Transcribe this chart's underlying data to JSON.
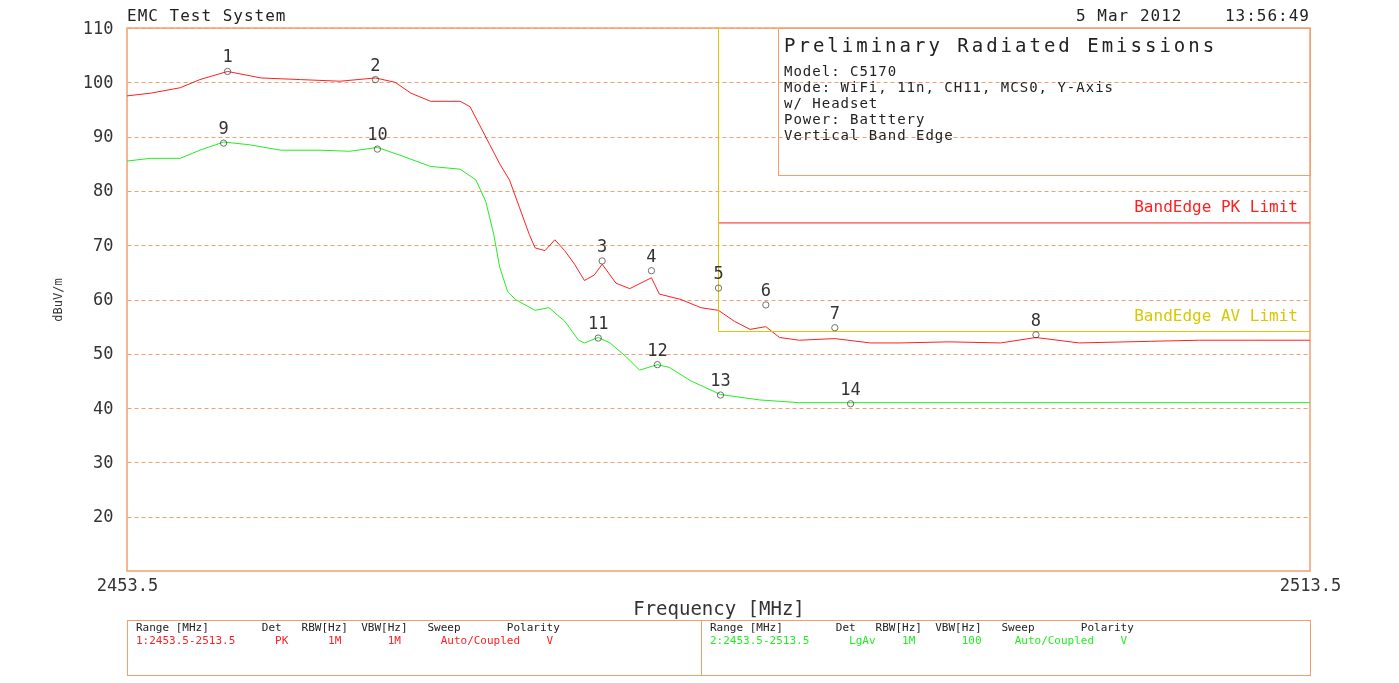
{
  "chart_data": {
    "type": "line",
    "title": "Preliminary Radiated Emissions",
    "xlabel": "Frequency [MHz]",
    "ylabel": "dBuV/m",
    "xlim": [
      2453.5,
      2513.5
    ],
    "xticks": [
      2453.5,
      2513.5
    ],
    "ylim": [
      10,
      110
    ],
    "yticks": [
      20,
      30,
      40,
      50,
      60,
      70,
      80,
      90,
      100,
      110
    ],
    "grid": "y",
    "marker": "none",
    "line_style": "solid",
    "series": [
      {
        "color": "#ff2020",
        "x": [
          2453.5,
          2454.7,
          2456.2,
          2457.2,
          2458.6,
          2460.3,
          2462.3,
          2464.3,
          2466.1,
          2467.1,
          2467.9,
          2468.9,
          2470.4,
          2470.9,
          2471.4,
          2471.9,
          2472.4,
          2472.9,
          2473.4,
          2473.9,
          2474.2,
          2474.7,
          2475.2,
          2475.7,
          2476.2,
          2476.7,
          2477.2,
          2477.6,
          2478.3,
          2479.0,
          2480.1,
          2480.5,
          2481.6,
          2482.6,
          2483.5,
          2484.3,
          2485.1,
          2485.9,
          2486.6,
          2487.6,
          2489.4,
          2491.2,
          2492.7,
          2495.2,
          2497.8,
          2499.6,
          2501.8,
          2505.4,
          2507.9,
          2510.5,
          2513.5
        ],
        "values": [
          97.5,
          98,
          99,
          100.5,
          102,
          100.8,
          100.5,
          100.2,
          100.8,
          100,
          98,
          96.5,
          96.5,
          95.5,
          92,
          88.5,
          85,
          82,
          77,
          72,
          69.5,
          69,
          71,
          69,
          66.5,
          63.5,
          64.5,
          66.5,
          63,
          62,
          64,
          61,
          60,
          58.5,
          58,
          56,
          54.5,
          55,
          53,
          52.5,
          52.8,
          52,
          52,
          52.2,
          52,
          53,
          52,
          52.3,
          52.5,
          52.5,
          52.5
        ]
      },
      {
        "color": "#22ee22",
        "x": [
          2453.5,
          2454.7,
          2456.2,
          2457.2,
          2458.4,
          2459.7,
          2461.3,
          2463.3,
          2464.8,
          2466.2,
          2467.4,
          2468.9,
          2470.4,
          2471.2,
          2471.7,
          2472.1,
          2472.4,
          2472.8,
          2473.2,
          2474.2,
          2474.9,
          2475.7,
          2476.4,
          2476.7,
          2477.4,
          2478.0,
          2478.8,
          2479.5,
          2480.4,
          2481.0,
          2482.1,
          2483.6,
          2485.6,
          2487.6,
          2490.2,
          2492.7,
          2497.8,
          2502.9,
          2507.9,
          2513.5
        ],
        "values": [
          85.5,
          86,
          86,
          87.5,
          89,
          88.5,
          87.5,
          87.5,
          87.3,
          88,
          86.5,
          84.5,
          84,
          82,
          78,
          72,
          66,
          61.5,
          60,
          58,
          58.5,
          56,
          52.5,
          52,
          53,
          52,
          49.5,
          47,
          48,
          47.5,
          45,
          42.5,
          41.5,
          41,
          41,
          41,
          41,
          41,
          41,
          41
        ]
      },
      {
        "name": "BandEdge PK Limit",
        "color": "#ff2020",
        "x": [
          2483.5,
          2513.5
        ],
        "values": [
          74.1,
          74.1
        ]
      },
      {
        "name": "BandEdge AV Limit",
        "color": "#d8c800",
        "x": [
          2483.5,
          2483.5,
          2513.5
        ],
        "values": [
          110,
          54.1,
          54.1
        ]
      },
      {
        "type": "scatter",
        "color": "#333333",
        "x": [
          2458.6,
          2466.1,
          2477.6,
          2480.1,
          2483.5,
          2485.9,
          2489.4,
          2499.6,
          2458.4,
          2466.2,
          2477.4,
          2480.4,
          2483.6,
          2490.2
        ],
        "values": [
          102,
          100.5,
          67.1,
          65.3,
          62.1,
          59,
          54.8,
          53.5,
          88.8,
          87.7,
          52.9,
          48,
          42.4,
          40.8
        ]
      }
    ],
    "annotations": [
      "EMC Test System",
      "5 Mar 2012    13:56:49",
      "Model: C5170",
      "Mode: WiFi, 11n, CH11, MCS0, Y-Axis",
      "w/ Headset",
      "Power: Batttery",
      "Vertical Band Edge",
      "Range [MHz]        Det   RBW[Hz]  VBW[Hz]   Sweep       Polarity",
      "1:2453.5-2513.5      PK      1M       1M      Auto/Coupled    V",
      "Range [MHz]        Det   RBW[Hz]  VBW[Hz]   Sweep       Polarity",
      "2:2453.5-2513.5      LgAv    1M       100     Auto/Coupled    V",
      {
        "text": "1",
        "x": 2458.6,
        "y": 102
      },
      {
        "text": "2",
        "x": 2466.1,
        "y": 100.5
      },
      {
        "text": "3",
        "x": 2477.6,
        "y": 67.1
      },
      {
        "text": "4",
        "x": 2480.1,
        "y": 65.3
      },
      {
        "text": "5",
        "x": 2483.5,
        "y": 62.1
      },
      {
        "text": "6",
        "x": 2485.9,
        "y": 59
      },
      {
        "text": "7",
        "x": 2489.4,
        "y": 54.8
      },
      {
        "text": "8",
        "x": 2499.6,
        "y": 53.5
      },
      {
        "text": "9",
        "x": 2458.4,
        "y": 88.8
      },
      {
        "text": "10",
        "x": 2466.2,
        "y": 87.7
      },
      {
        "text": "11",
        "x": 2477.4,
        "y": 52.9
      },
      {
        "text": "12",
        "x": 2480.4,
        "y": 48
      },
      {
        "text": "13",
        "x": 2483.6,
        "y": 42.4
      },
      {
        "text": "14",
        "x": 2490.2,
        "y": 40.8
      }
    ]
  }
}
